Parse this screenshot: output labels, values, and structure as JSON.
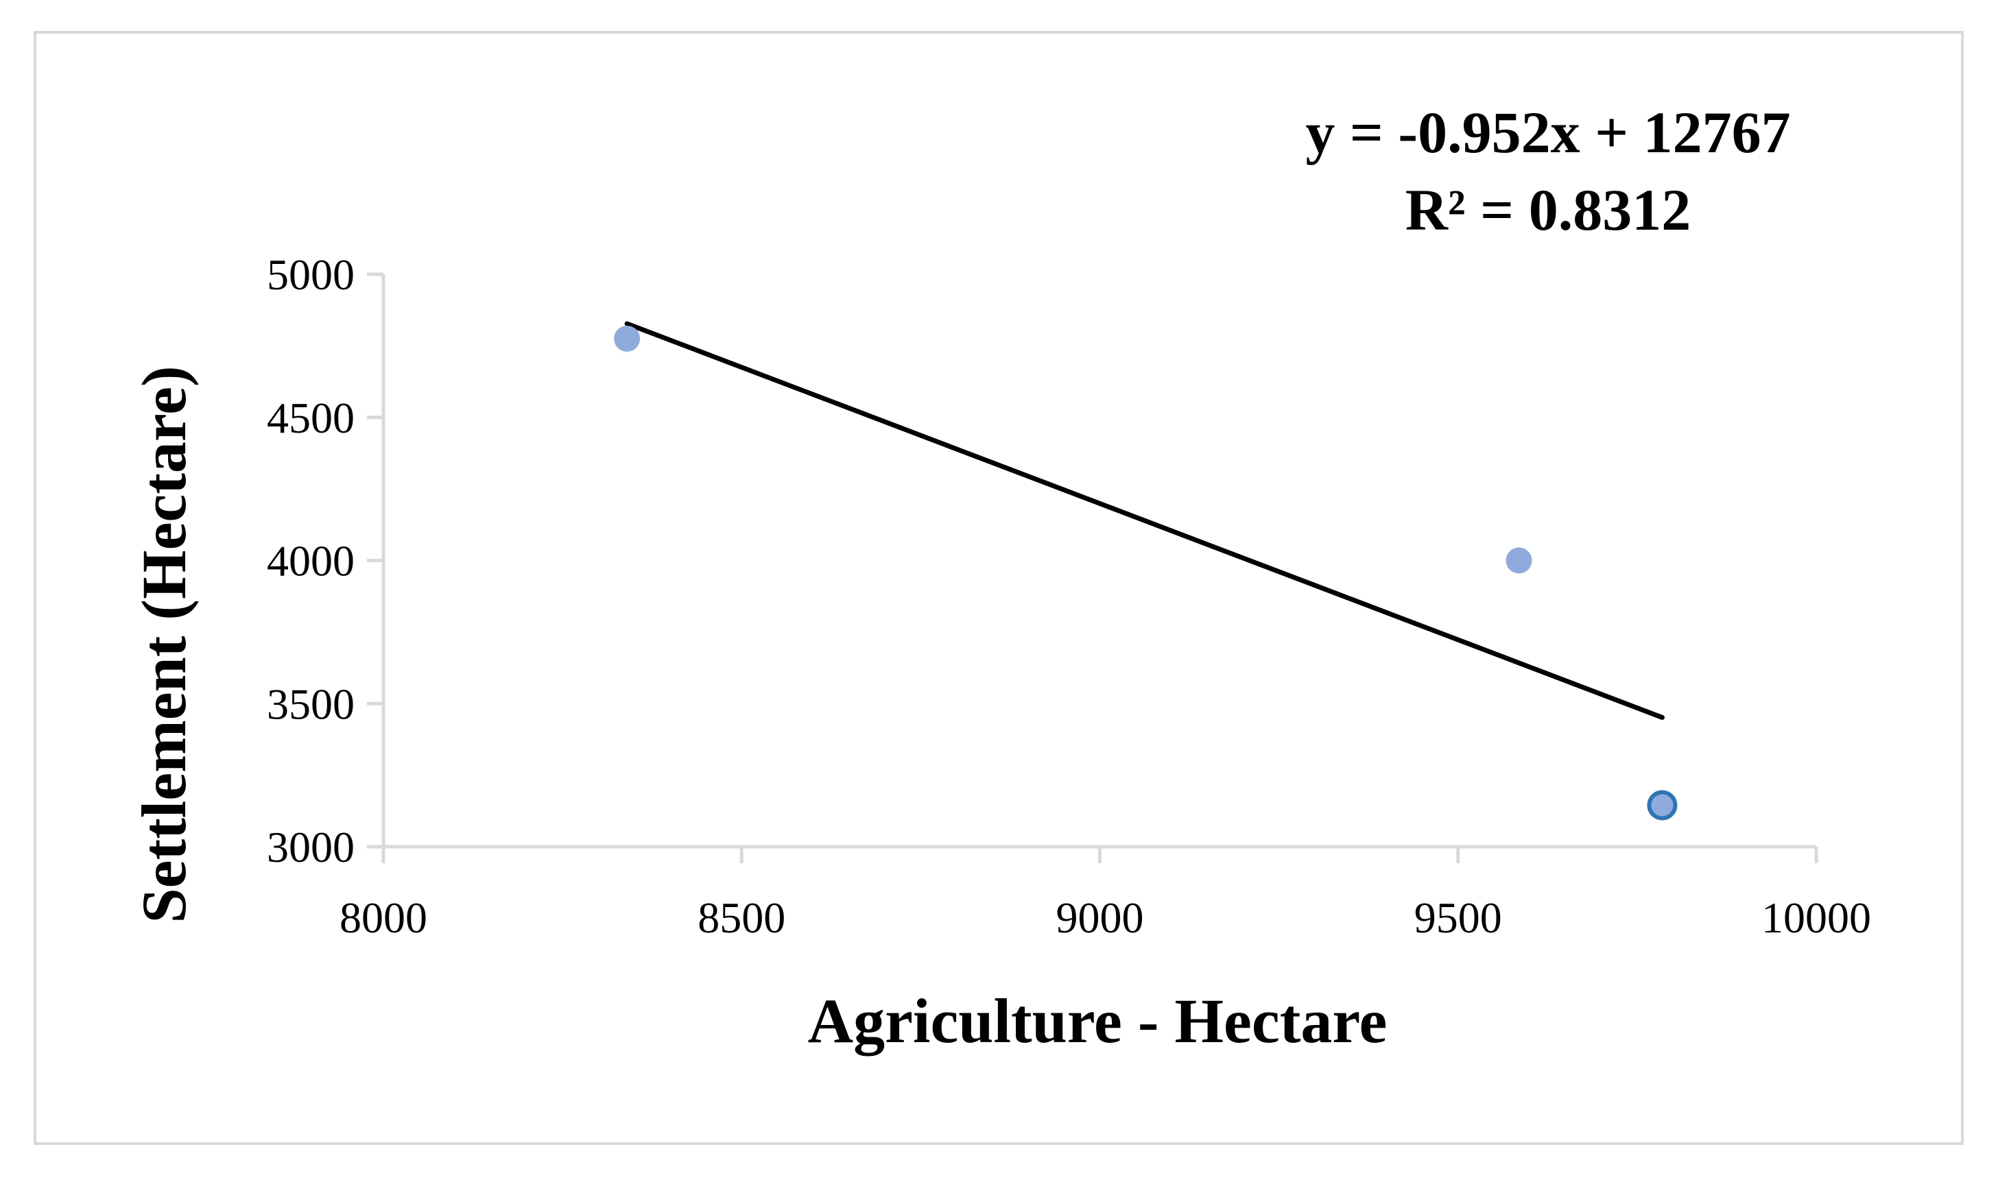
{
  "chart_data": {
    "type": "scatter",
    "title": "",
    "xlabel": "Agriculture - Hectare",
    "ylabel": "Settlement (Hectare)",
    "xlim": [
      8000,
      10000
    ],
    "ylim": [
      3000,
      5000
    ],
    "x_ticks": [
      "8000",
      "8500",
      "9000",
      "9500",
      "10000"
    ],
    "y_ticks": [
      "3000",
      "3500",
      "4000",
      "4500",
      "5000"
    ],
    "grid": false,
    "legend": "none",
    "series": [
      {
        "points": [
          {
            "x": 8340,
            "y": 4775
          },
          {
            "x": 9585,
            "y": 4000
          },
          {
            "x": 9785,
            "y": 3145
          }
        ],
        "color": "#8faadc",
        "highlight_color": "#2e75b6"
      }
    ],
    "trendline": {
      "slope": -0.952,
      "intercept": 12767,
      "x_range": [
        8340,
        9785
      ],
      "color": "#000000"
    },
    "equation_text": "y = -0.952x + 12767",
    "r2_text": "R² = 0.8312",
    "axis_color": "#d9d9d9"
  }
}
